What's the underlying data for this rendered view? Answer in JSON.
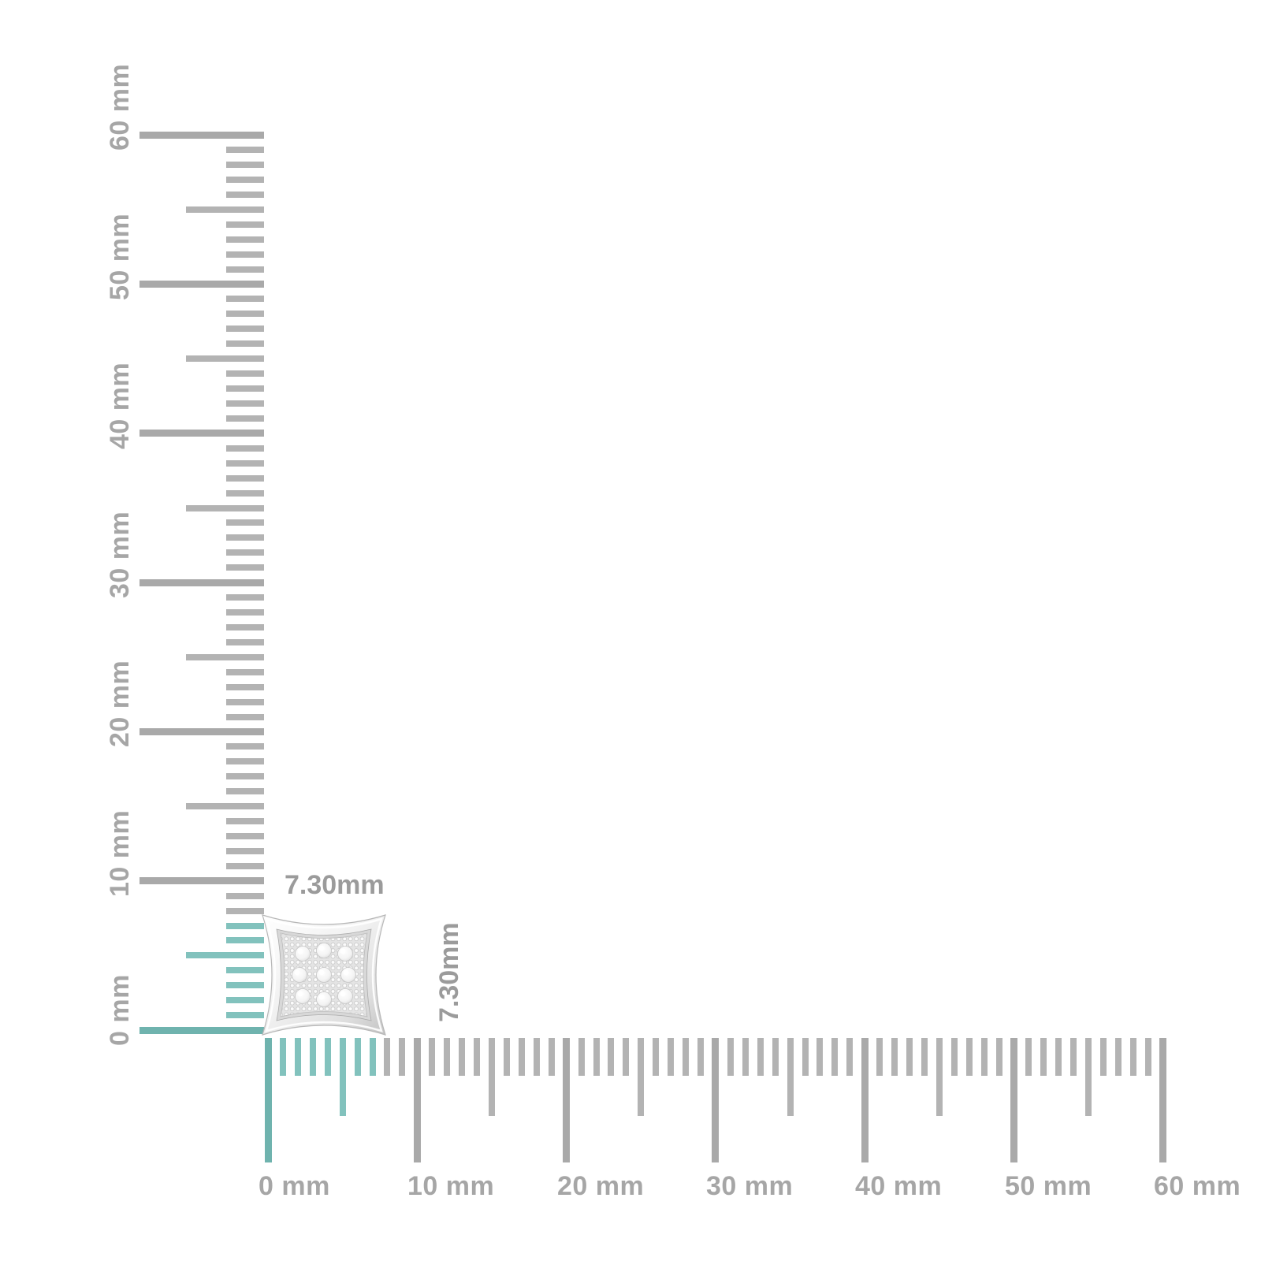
{
  "canvas": {
    "background": "#ffffff"
  },
  "product": {
    "description": "kite-shaped pave diamond stud earring",
    "width_label": "7.30mm",
    "height_label": "7.30mm"
  },
  "rulers": {
    "unit": "mm",
    "max_mm": 60,
    "major_step_mm": 10,
    "half_step_mm": 5,
    "highlight_extent_mm": 7.3,
    "vertical_labels": [
      "0 mm",
      "10 mm",
      "20 mm",
      "30 mm",
      "40 mm",
      "50 mm",
      "60 mm"
    ],
    "horizontal_labels": [
      "0 mm",
      "10 mm",
      "20 mm",
      "30 mm",
      "40 mm",
      "50 mm",
      "60 mm"
    ],
    "colors": {
      "tick_gray": "#b3b3b3",
      "tick_gray_major": "#a9a9a9",
      "tick_teal": "#82c2bd",
      "tick_teal_major": "#6fb3ae",
      "label_gray": "#a6a6a6",
      "dimension_label_gray": "#9b9b9b"
    }
  }
}
